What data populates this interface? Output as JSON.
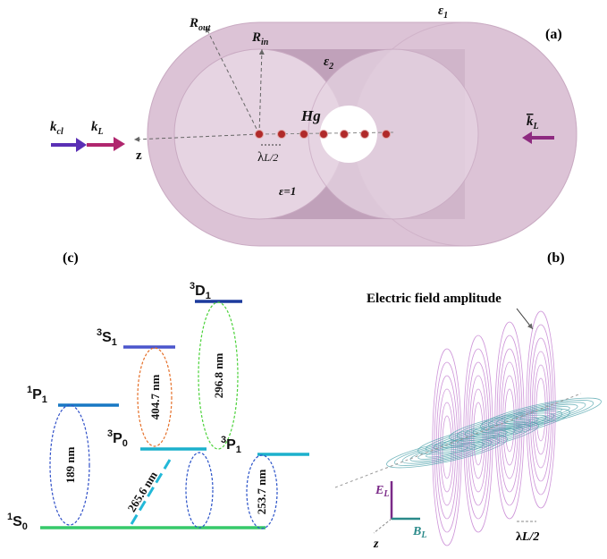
{
  "panel_a": {
    "label": "(a)",
    "r_out": {
      "main": "R",
      "sub": "out"
    },
    "r_in": {
      "main": "R",
      "sub": "in"
    },
    "eps1": {
      "main": "ε",
      "sub": "1"
    },
    "eps2": {
      "main": "ε",
      "sub": "2"
    },
    "hg": "Hg",
    "eps_vac": "ε=1",
    "k_cl": {
      "main": "k",
      "sub": "cl"
    },
    "k_l": {
      "main": "k",
      "sub": "L"
    },
    "k_l_bar": {
      "main": "k",
      "sub": "L"
    },
    "z": "z",
    "lambda": {
      "main": "λ",
      "sub": "L/2"
    }
  },
  "panel_b": {
    "label": "(b)",
    "title": "Electric field amplitude",
    "e_l": {
      "main": "E",
      "sub": "L"
    },
    "b_l": {
      "main": "B",
      "sub": "L"
    },
    "z": "z",
    "lambda": {
      "main": "λ",
      "sub": "L/2"
    }
  },
  "panel_c": {
    "label": "(c)",
    "levels": [
      {
        "sup": "3",
        "main": "D",
        "sub": "1"
      },
      {
        "sup": "3",
        "main": "S",
        "sub": "1"
      },
      {
        "sup": "1",
        "main": "P",
        "sub": "1"
      },
      {
        "sup": "3",
        "main": "P",
        "sub": "0"
      },
      {
        "sup": "3",
        "main": "P",
        "sub": "1"
      },
      {
        "sup": "1",
        "main": "S",
        "sub": "0"
      }
    ],
    "transitions": [
      "296.8 nm",
      "404.7 nm",
      "189 nm",
      "265.6 nm",
      "253.7 nm"
    ]
  }
}
